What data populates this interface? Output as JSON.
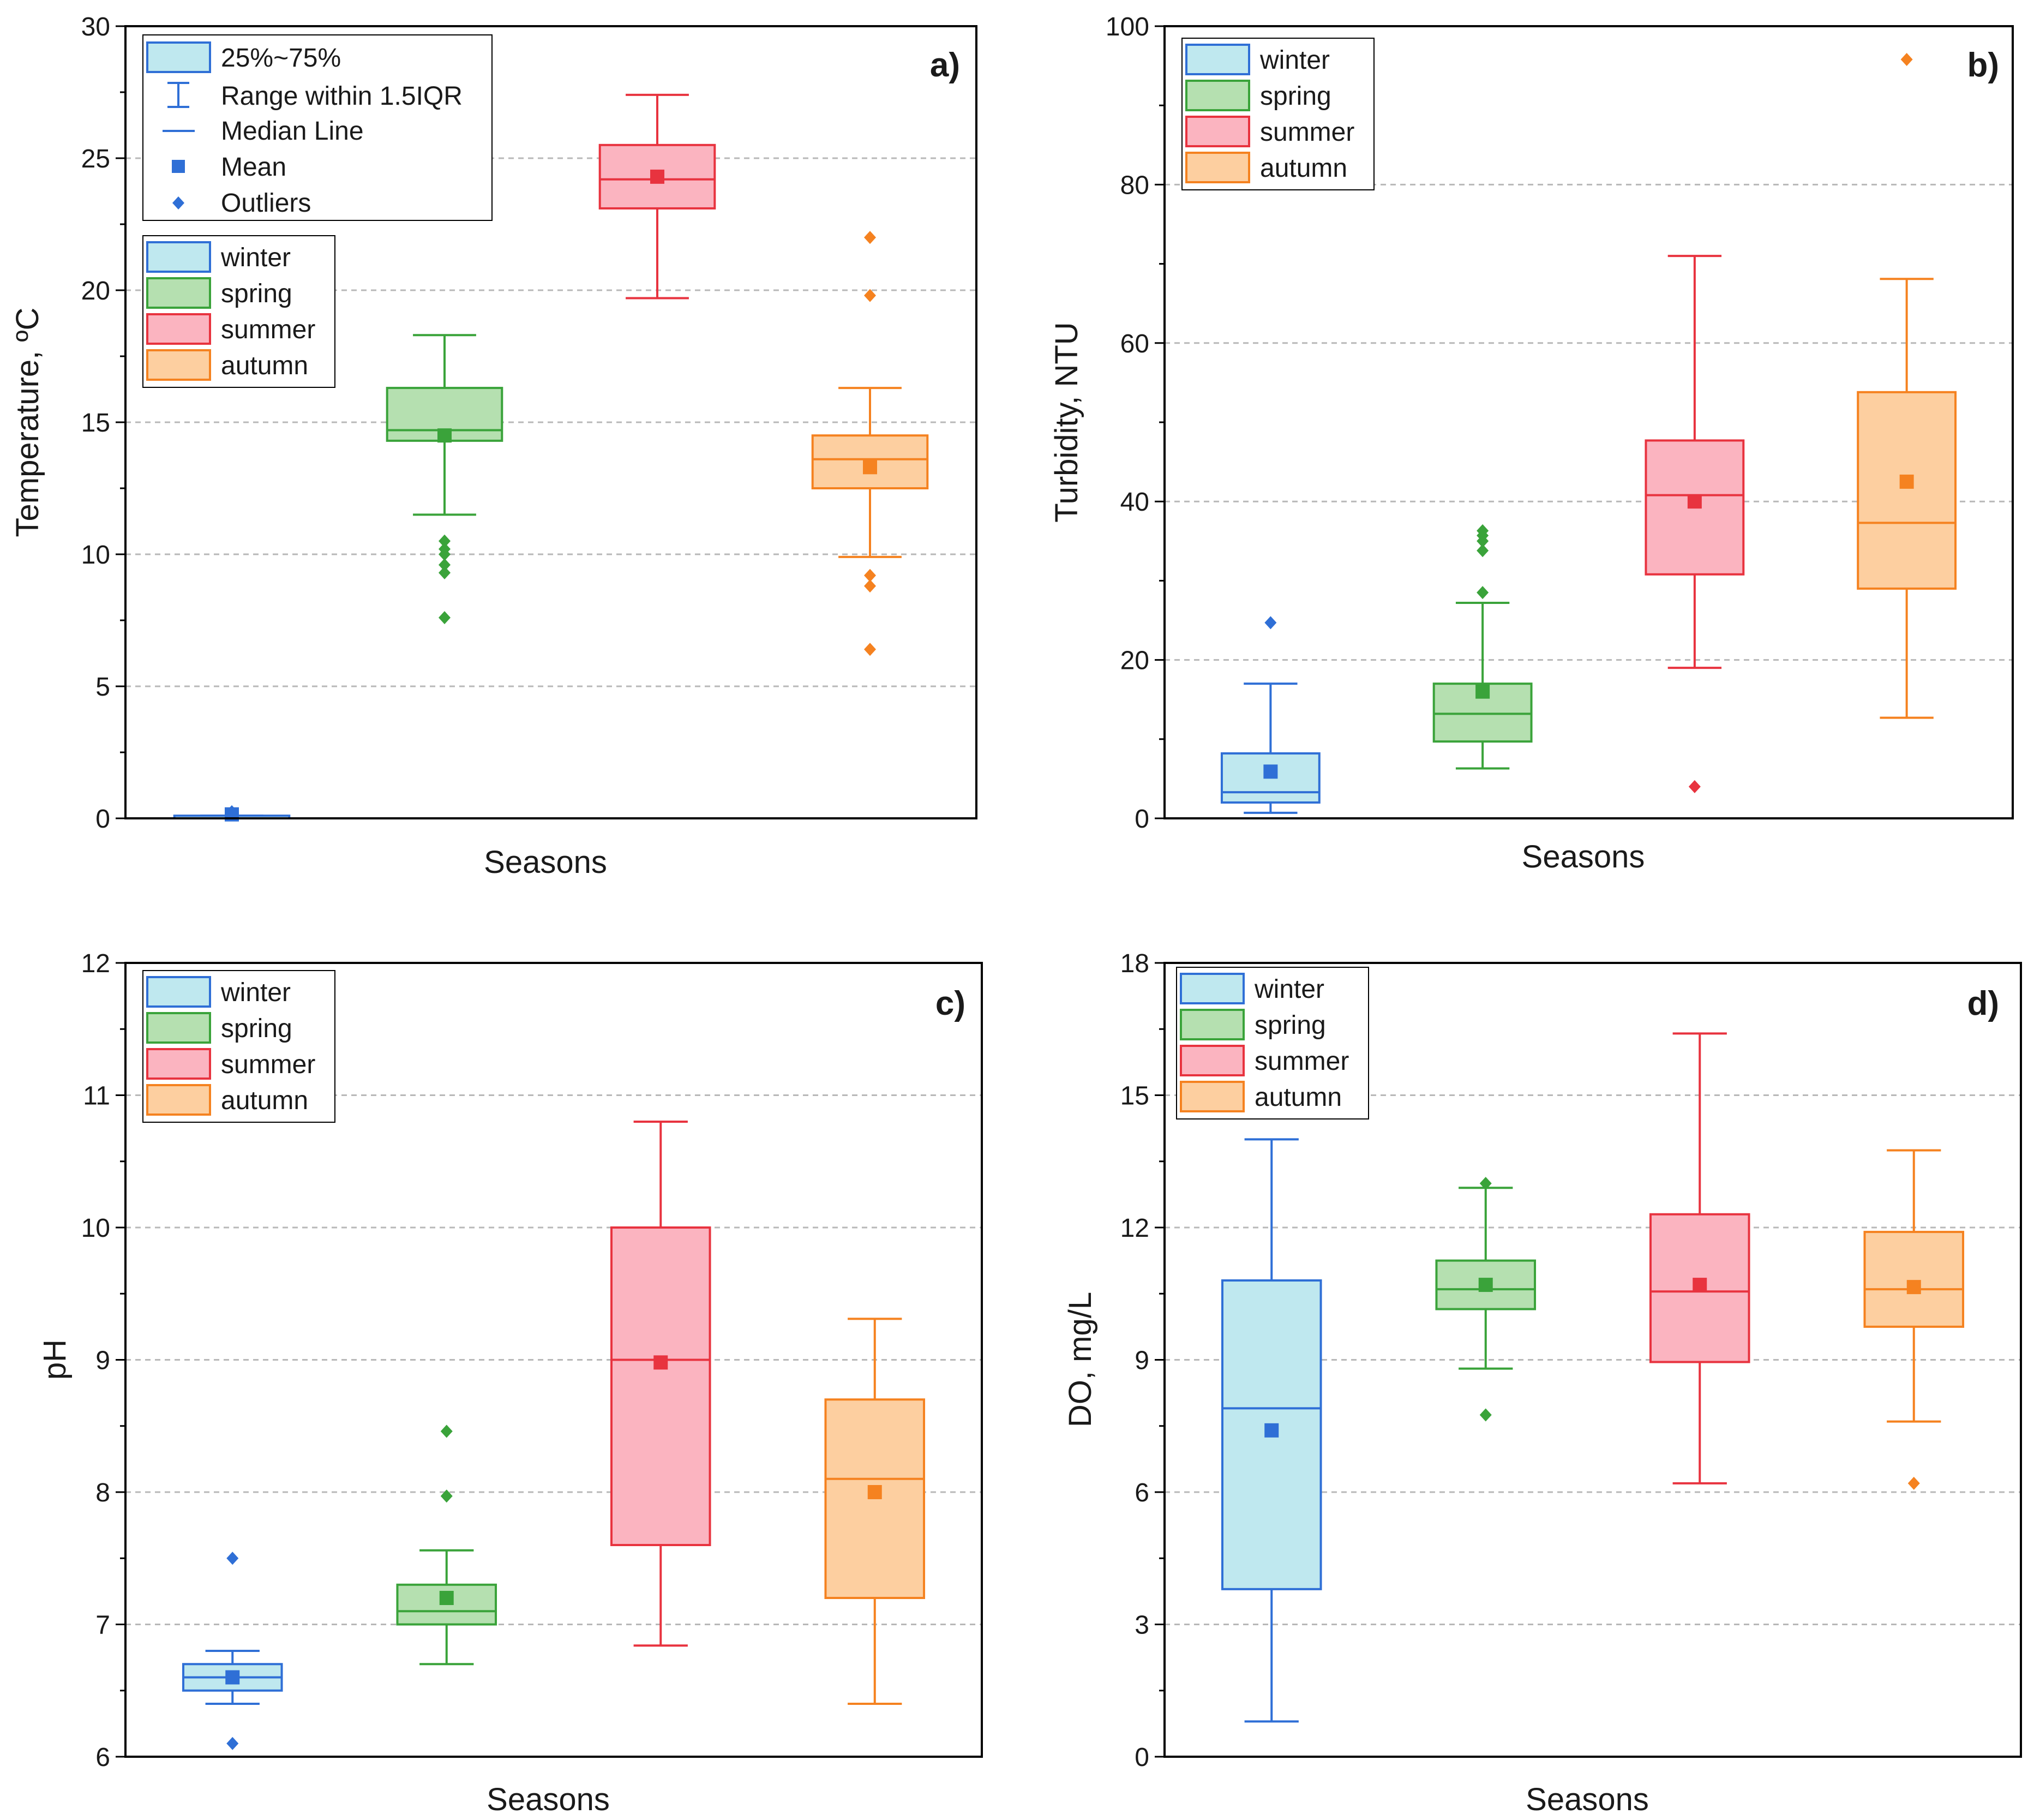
{
  "season_colors": {
    "winter": {
      "stroke": "#2f6fd6",
      "fill": "#bfe8ef"
    },
    "spring": {
      "stroke": "#3aa33a",
      "fill": "#b5e0b0"
    },
    "summer": {
      "stroke": "#e8333f",
      "fill": "#fbb4c0"
    },
    "autumn": {
      "stroke": "#f58220",
      "fill": "#fdcfa0"
    }
  },
  "chart_data": [
    {
      "type": "box",
      "panel": "a)",
      "ylabel": "Temperature, ºC",
      "xlabel": "Seasons",
      "ylim": [
        0,
        30
      ],
      "yticks": [
        "0",
        "5",
        "10",
        "15",
        "20",
        "25",
        "30"
      ],
      "legend_top": {
        "box": "25%~75%",
        "whisker": "Range within 1.5IQR",
        "median": "Median Line",
        "mean": "Mean",
        "outliers": "Outliers"
      },
      "legend": [
        "winter",
        "spring",
        "summer",
        "autumn"
      ],
      "series": [
        {
          "name": "winter",
          "q1": 0.0,
          "median": 0.0,
          "q3": 0.1,
          "whisker_low": 0.0,
          "whisker_high": 0.1,
          "mean": 0.15,
          "outliers": [
            0.25
          ]
        },
        {
          "name": "spring",
          "q1": 14.3,
          "median": 14.7,
          "q3": 16.3,
          "whisker_low": 11.5,
          "whisker_high": 18.3,
          "mean": 14.5,
          "outliers": [
            10.5,
            10.2,
            10.0,
            9.6,
            9.3,
            7.6
          ]
        },
        {
          "name": "summer",
          "q1": 23.1,
          "median": 24.2,
          "q3": 25.5,
          "whisker_low": 19.7,
          "whisker_high": 27.4,
          "mean": 24.3,
          "outliers": []
        },
        {
          "name": "autumn",
          "q1": 12.5,
          "median": 13.6,
          "q3": 14.5,
          "whisker_low": 9.9,
          "whisker_high": 16.3,
          "mean": 13.3,
          "outliers": [
            22.0,
            19.8,
            9.2,
            8.8,
            6.4
          ]
        }
      ]
    },
    {
      "type": "box",
      "panel": "b)",
      "ylabel": "Turbidity, NTU",
      "xlabel": "Seasons",
      "ylim": [
        0,
        100
      ],
      "yticks": [
        "0",
        "20",
        "40",
        "60",
        "80",
        "100"
      ],
      "legend": [
        "winter",
        "spring",
        "summer",
        "autumn"
      ],
      "series": [
        {
          "name": "winter",
          "q1": 2.0,
          "median": 3.3,
          "q3": 8.2,
          "whisker_low": 0.7,
          "whisker_high": 17.0,
          "mean": 5.9,
          "outliers": [
            24.7
          ]
        },
        {
          "name": "spring",
          "q1": 9.7,
          "median": 13.2,
          "q3": 17.0,
          "whisker_low": 6.3,
          "whisker_high": 27.2,
          "mean": 16.0,
          "outliers": [
            36.3,
            35.7,
            35.0,
            33.8,
            28.5
          ]
        },
        {
          "name": "summer",
          "q1": 30.8,
          "median": 40.8,
          "q3": 47.7,
          "whisker_low": 19.0,
          "whisker_high": 71.0,
          "mean": 40.0,
          "outliers": [
            4.0
          ]
        },
        {
          "name": "autumn",
          "q1": 29.0,
          "median": 37.3,
          "q3": 53.8,
          "whisker_low": 12.7,
          "whisker_high": 68.1,
          "mean": 42.5,
          "outliers": [
            95.8
          ]
        }
      ]
    },
    {
      "type": "box",
      "panel": "c)",
      "ylabel": "pH",
      "xlabel": "Seasons",
      "ylim": [
        6,
        12
      ],
      "yticks": [
        "6",
        "7",
        "8",
        "9",
        "10",
        "11",
        "12"
      ],
      "legend": [
        "winter",
        "spring",
        "summer",
        "autumn"
      ],
      "series": [
        {
          "name": "winter",
          "q1": 6.5,
          "median": 6.6,
          "q3": 6.7,
          "whisker_low": 6.4,
          "whisker_high": 6.8,
          "mean": 6.6,
          "outliers": [
            7.5,
            6.1
          ]
        },
        {
          "name": "spring",
          "q1": 7.0,
          "median": 7.1,
          "q3": 7.3,
          "whisker_low": 6.7,
          "whisker_high": 7.56,
          "mean": 7.2,
          "outliers": [
            8.46,
            7.97
          ]
        },
        {
          "name": "summer",
          "q1": 7.6,
          "median": 9.0,
          "q3": 10.0,
          "whisker_low": 6.84,
          "whisker_high": 10.8,
          "mean": 8.98,
          "outliers": []
        },
        {
          "name": "autumn",
          "q1": 7.2,
          "median": 8.1,
          "q3": 8.7,
          "whisker_low": 6.4,
          "whisker_high": 9.31,
          "mean": 8.0,
          "outliers": []
        }
      ]
    },
    {
      "type": "box",
      "panel": "d)",
      "ylabel": "DO, mg/L",
      "xlabel": "Seasons",
      "ylim": [
        0,
        18
      ],
      "yticks": [
        "0",
        "3",
        "6",
        "9",
        "12",
        "15",
        "18"
      ],
      "legend": [
        "winter",
        "spring",
        "summer",
        "autumn"
      ],
      "series": [
        {
          "name": "winter",
          "q1": 3.8,
          "median": 7.9,
          "q3": 10.8,
          "whisker_low": 0.8,
          "whisker_high": 14.0,
          "mean": 7.4,
          "outliers": []
        },
        {
          "name": "spring",
          "q1": 10.15,
          "median": 10.6,
          "q3": 11.25,
          "whisker_low": 8.8,
          "whisker_high": 12.9,
          "mean": 10.7,
          "outliers": [
            13.0,
            7.75
          ]
        },
        {
          "name": "summer",
          "q1": 8.95,
          "median": 10.55,
          "q3": 12.3,
          "whisker_low": 6.2,
          "whisker_high": 16.4,
          "mean": 10.7,
          "outliers": []
        },
        {
          "name": "autumn",
          "q1": 9.75,
          "median": 10.6,
          "q3": 11.9,
          "whisker_low": 7.6,
          "whisker_high": 13.75,
          "mean": 10.65,
          "outliers": [
            6.2
          ]
        }
      ]
    }
  ]
}
